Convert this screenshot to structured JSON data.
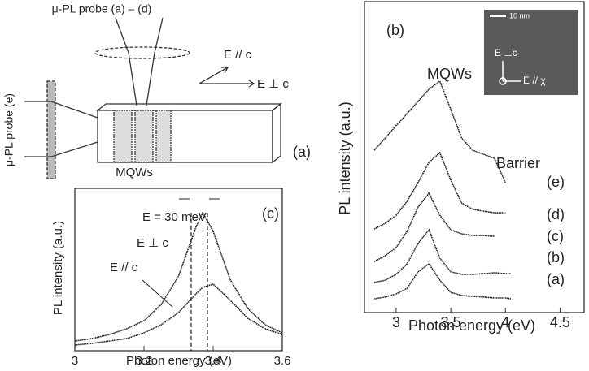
{
  "diagram": {
    "probe_top": "μ-PL probe (a) – (d)",
    "probe_side": "μ-PL probe (e)",
    "mqws": "MQWs",
    "e_par": "E // c",
    "e_perp": "E ⊥ c",
    "panel": "(a)"
  },
  "chart_data": [
    {
      "type": "line",
      "panel": "(b)",
      "xlabel": "Photon energy (eV)",
      "ylabel": "PL intensity (a.u.)",
      "x": [
        2.8,
        2.9,
        3.0,
        3.1,
        3.2,
        3.3,
        3.4,
        3.5,
        3.6,
        3.7,
        3.8,
        3.9,
        4.0,
        4.05
      ],
      "series": [
        {
          "name": "(a)",
          "color": "#222",
          "values": [
            0.44,
            0.5,
            0.6,
            0.78,
            1.31,
            1.57,
            1.04,
            0.65,
            0.55,
            0.52,
            0.5,
            0.47,
            0.47,
            0.44
          ]
        },
        {
          "name": "(b)",
          "color": "#222",
          "values": [
            0.97,
            1.04,
            1.23,
            1.57,
            2.22,
            2.66,
            1.75,
            1.31,
            1.23,
            1.23,
            1.25,
            1.28,
            1.25,
            1.25
          ]
        },
        {
          "name": "(c)",
          "color": "#222",
          "values": [
            1.64,
            1.83,
            2.09,
            2.61,
            3.39,
            3.84,
            3.13,
            2.66,
            2.53,
            2.48,
            2.48,
            2.45,
            null,
            null
          ]
        },
        {
          "name": "(d)",
          "color": "#222",
          "values": [
            2.69,
            2.87,
            3.13,
            3.58,
            4.18,
            4.83,
            5.14,
            4.26,
            3.52,
            3.32,
            3.26,
            3.21,
            3.21,
            null
          ]
        },
        {
          "name": "(e)",
          "color": "#222",
          "values": [
            5.22,
            5.61,
            6.01,
            6.4,
            6.79,
            7.18,
            7.44,
            6.53,
            5.61,
            5.22,
            5.09,
            4.96,
            4.18,
            null
          ]
        }
      ],
      "xlim": [
        2.71,
        4.72
      ],
      "xticks": [
        3,
        3.5,
        4,
        4.5
      ],
      "ylim": [
        0,
        10
      ],
      "annotations": [
        "MQWs",
        "Barrier"
      ],
      "inset": {
        "scale": "10 nm",
        "e_perp": "E ⊥c",
        "e_par": "E // χ"
      }
    },
    {
      "type": "line",
      "panel": "(c)",
      "xlabel": "Photon energy (eV)",
      "ylabel": "PL intensity (a.u.)",
      "x": [
        3.0,
        3.05,
        3.1,
        3.15,
        3.2,
        3.25,
        3.3,
        3.35,
        3.37,
        3.4,
        3.45,
        3.5,
        3.55,
        3.6
      ],
      "series": [
        {
          "name": "E ⊥ c",
          "color": "#222",
          "values": [
            0.6,
            0.75,
            1.0,
            1.35,
            1.85,
            2.85,
            4.6,
            7.6,
            8.5,
            7.35,
            4.35,
            2.6,
            1.6,
            1.1
          ]
        },
        {
          "name": "E // c",
          "color": "#222",
          "values": [
            0.35,
            0.45,
            0.6,
            0.75,
            1.1,
            1.6,
            2.35,
            3.5,
            3.9,
            4.1,
            3.1,
            2.0,
            1.35,
            1.0
          ]
        }
      ],
      "xlim": [
        3,
        3.6
      ],
      "xticks": [
        3,
        3.2,
        3.4,
        3.6
      ],
      "ylim": [
        0,
        10
      ],
      "annotations": [
        "E = 30 meV"
      ]
    }
  ]
}
